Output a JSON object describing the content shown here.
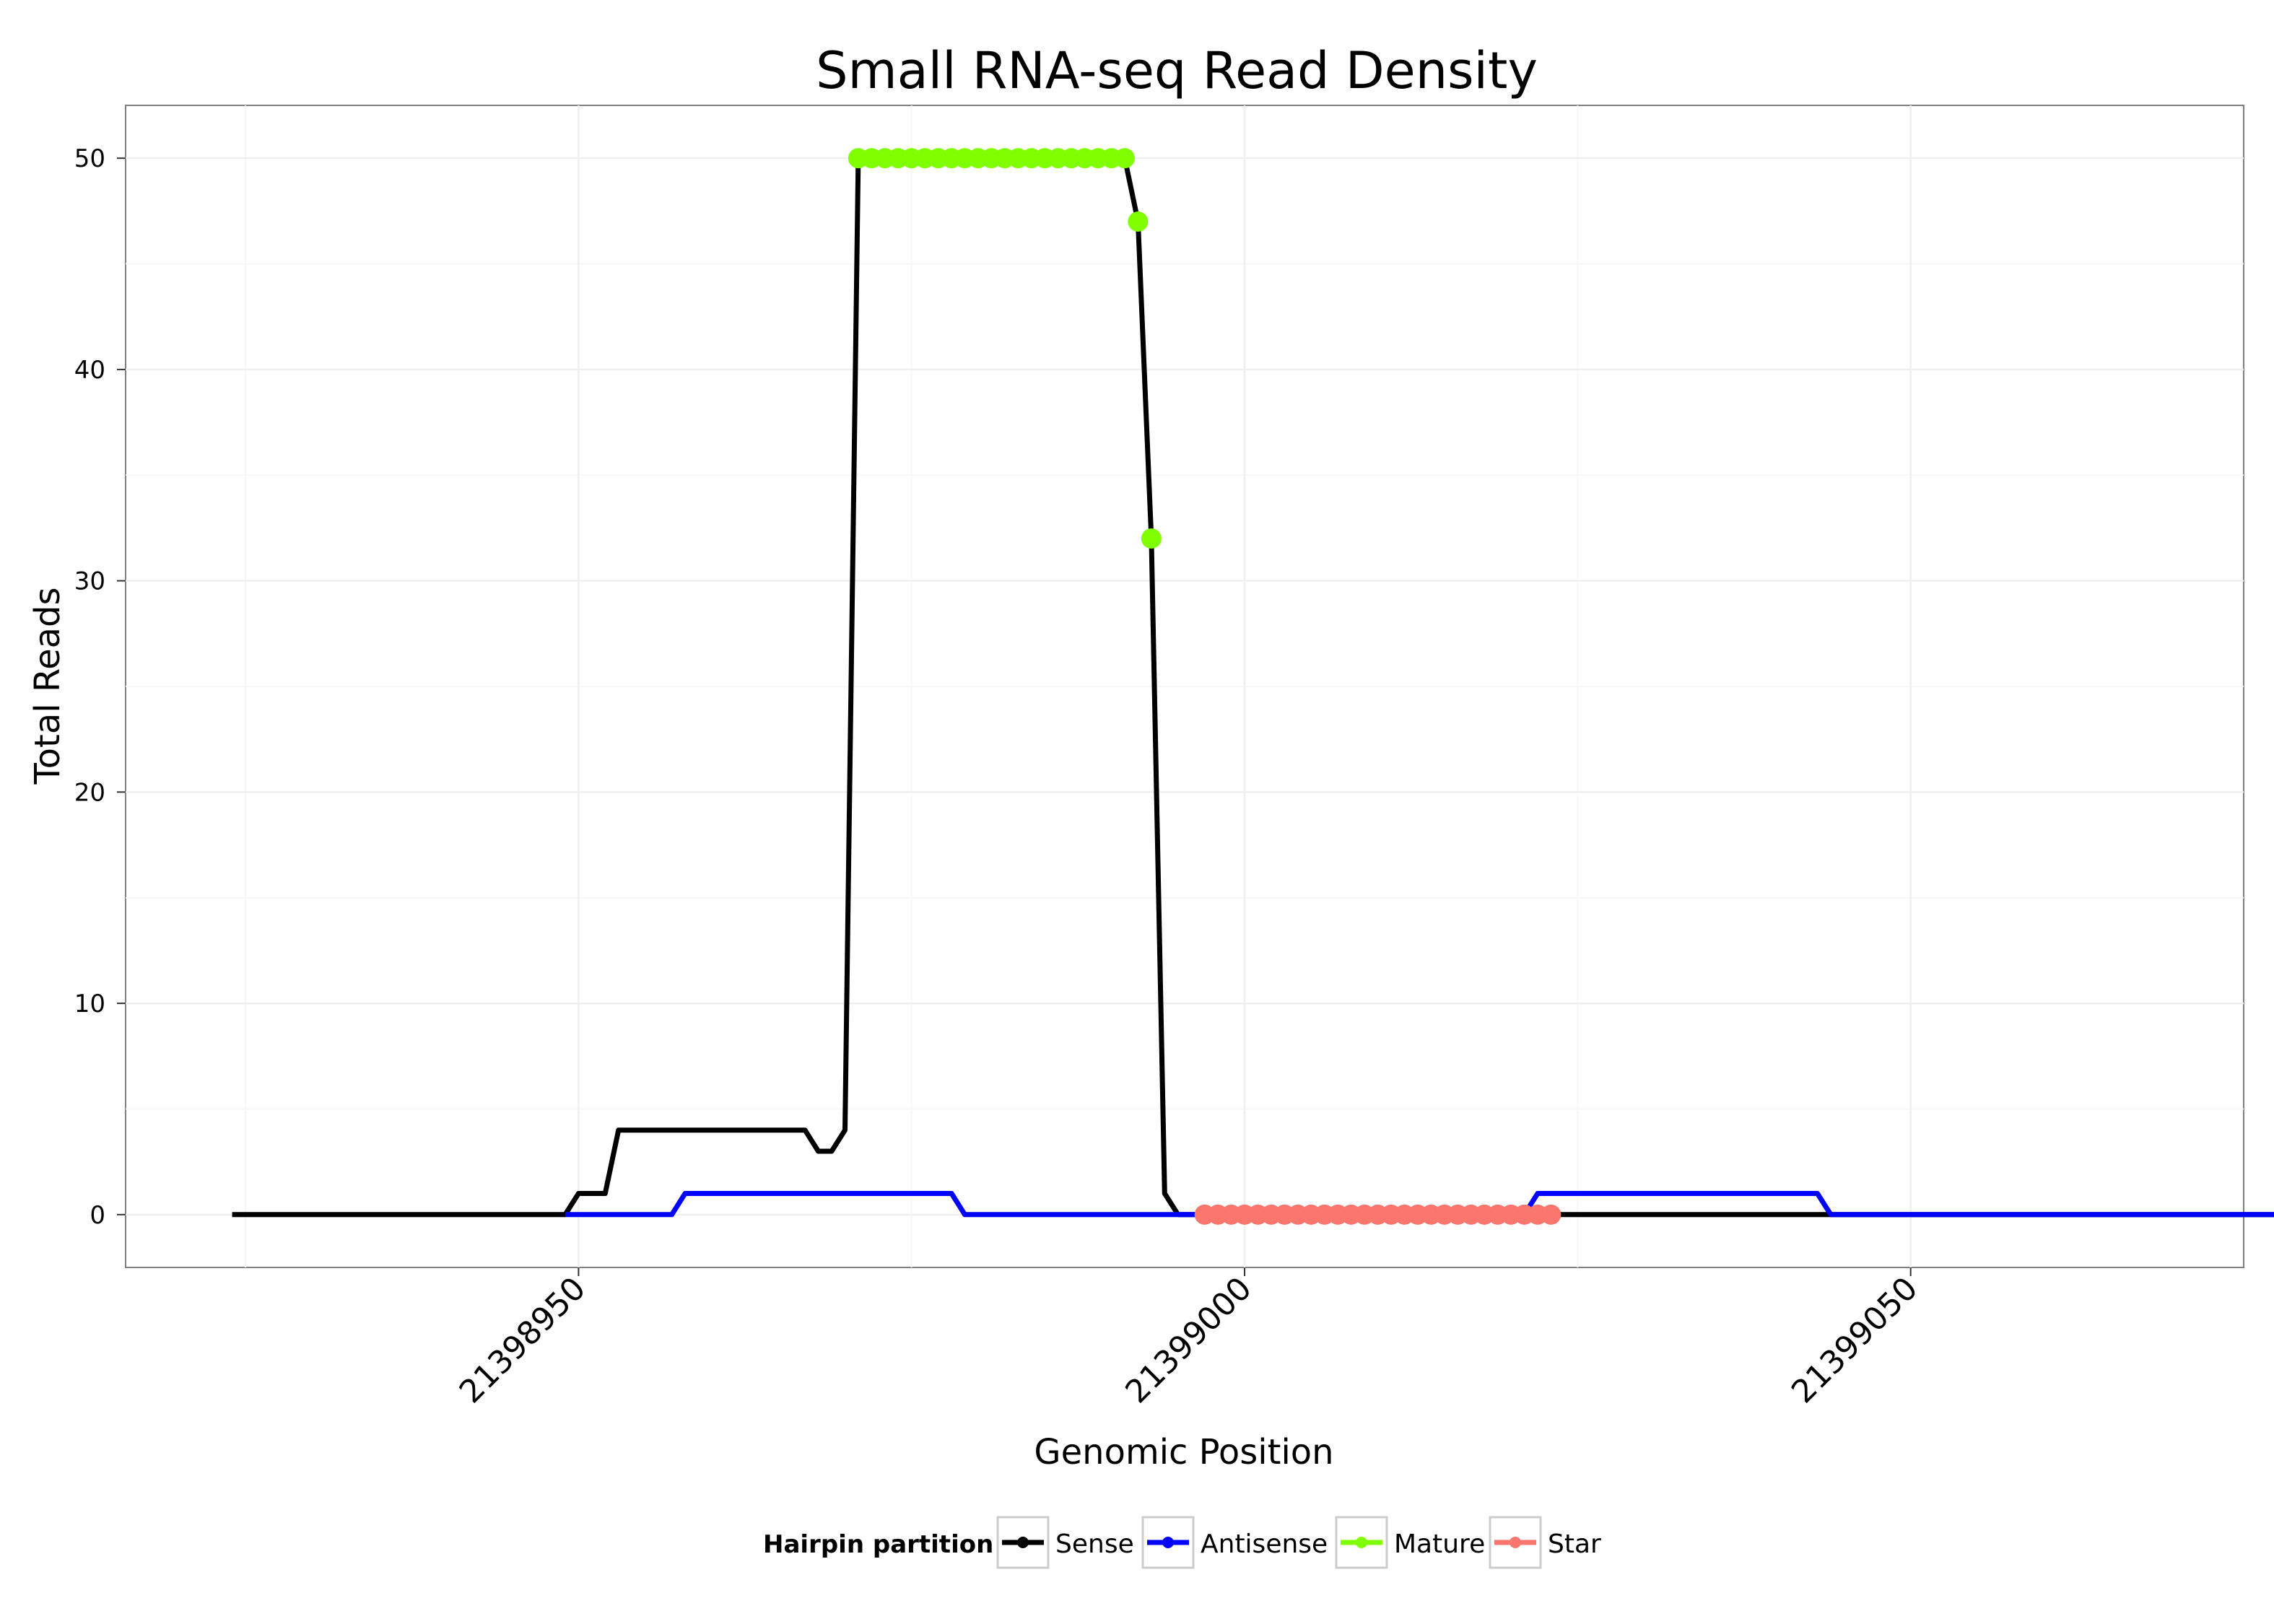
{
  "chart_data": {
    "type": "line",
    "title": "Small RNA-seq Read Density",
    "xlabel": "Genomic Position",
    "ylabel": "Total Reads",
    "xlim": [
      21398916,
      21399075
    ],
    "ylim": [
      -2.5,
      52.5
    ],
    "x_ticks": [
      21398950,
      21399000,
      21399050
    ],
    "x_tick_labels": [
      "21398950",
      "21399000",
      "21399050"
    ],
    "y_ticks": [
      0,
      10,
      20,
      30,
      40,
      50
    ],
    "y_tick_labels": [
      "0",
      "10",
      "20",
      "30",
      "40",
      "50"
    ],
    "grid": true,
    "legend": {
      "position": "bottom",
      "title": "Hairpin partition",
      "entries": [
        "Sense",
        "Antisense",
        "Mature",
        "Star"
      ]
    },
    "series": [
      {
        "name": "Sense",
        "color": "#000000",
        "style": "line",
        "points": [
          [
            21398924,
            0
          ],
          [
            21398949,
            0
          ],
          [
            21398950,
            1
          ],
          [
            21398952,
            1
          ],
          [
            21398953,
            4
          ],
          [
            21398967,
            4
          ],
          [
            21398968,
            3
          ],
          [
            21398969,
            3
          ],
          [
            21398970,
            4
          ],
          [
            21398971,
            50
          ],
          [
            21398991,
            50
          ],
          [
            21398992,
            47
          ],
          [
            21398993,
            32
          ],
          [
            21398994,
            1
          ],
          [
            21398995,
            0
          ],
          [
            21399083,
            0
          ]
        ]
      },
      {
        "name": "Antisense",
        "color": "#0000ff",
        "style": "line",
        "points": [
          [
            21398949,
            0
          ],
          [
            21398957,
            0
          ],
          [
            21398958,
            1
          ],
          [
            21398978,
            1
          ],
          [
            21398979,
            0
          ],
          [
            21398994,
            0
          ],
          [
            21399021,
            0
          ],
          [
            21399022,
            1
          ],
          [
            21399043,
            1
          ],
          [
            21399044,
            0
          ],
          [
            21399083,
            0
          ]
        ]
      },
      {
        "name": "Mature",
        "color": "#7fff00",
        "style": "points",
        "x": [
          21398971,
          21398972,
          21398973,
          21398974,
          21398975,
          21398976,
          21398977,
          21398978,
          21398979,
          21398980,
          21398981,
          21398982,
          21398983,
          21398984,
          21398985,
          21398986,
          21398987,
          21398988,
          21398989,
          21398990,
          21398991,
          21398992,
          21398993
        ],
        "y": [
          50,
          50,
          50,
          50,
          50,
          50,
          50,
          50,
          50,
          50,
          50,
          50,
          50,
          50,
          50,
          50,
          50,
          50,
          50,
          50,
          50,
          47,
          32
        ]
      },
      {
        "name": "Star",
        "color": "#f8766d",
        "style": "points",
        "x": [
          21398997,
          21398998,
          21398999,
          21399000,
          21399001,
          21399002,
          21399003,
          21399004,
          21399005,
          21399006,
          21399007,
          21399008,
          21399009,
          21399010,
          21399011,
          21399012,
          21399013,
          21399014,
          21399015,
          21399016,
          21399017,
          21399018,
          21399019,
          21399020,
          21399021,
          21399022,
          21399023
        ],
        "y": [
          0,
          0,
          0,
          0,
          0,
          0,
          0,
          0,
          0,
          0,
          0,
          0,
          0,
          0,
          0,
          0,
          0,
          0,
          0,
          0,
          0,
          0,
          0,
          0,
          0,
          0,
          0
        ]
      }
    ]
  }
}
